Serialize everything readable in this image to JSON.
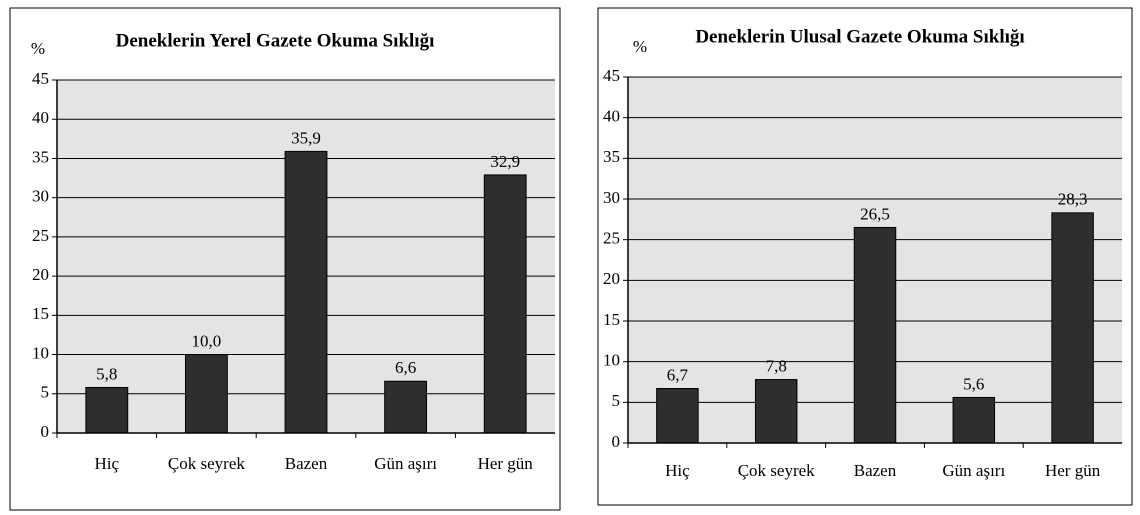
{
  "chart_data": [
    {
      "type": "bar",
      "title": "Deneklerin Yerel Gazete Okuma Sıklığı",
      "y_label": "%",
      "categories": [
        "Hiç",
        "Çok seyrek",
        "Bazen",
        "Gün aşırı",
        "Her gün"
      ],
      "values": [
        5.8,
        10.0,
        35.9,
        6.6,
        32.9
      ],
      "value_labels": [
        "5,8",
        "10,0",
        "35,9",
        "6,6",
        "32,9"
      ],
      "color": "#2e2e2e",
      "ylim": [
        0,
        45
      ],
      "yticks": [
        0,
        5,
        10,
        15,
        20,
        25,
        30,
        35,
        40,
        45
      ],
      "grid": true
    },
    {
      "type": "bar",
      "title": "Deneklerin Ulusal Gazete Okuma Sıklığı",
      "y_label": "%",
      "categories": [
        "Hiç",
        "Çok seyrek",
        "Bazen",
        "Gün aşırı",
        "Her gün"
      ],
      "values": [
        6.7,
        7.8,
        26.5,
        5.6,
        28.3
      ],
      "value_labels": [
        "6,7",
        "7,8",
        "26,5",
        "5,6",
        "28,3"
      ],
      "color": "#2e2e2e",
      "ylim": [
        0,
        45
      ],
      "yticks": [
        0,
        5,
        10,
        15,
        20,
        25,
        30,
        35,
        40,
        45
      ],
      "grid": true
    }
  ]
}
